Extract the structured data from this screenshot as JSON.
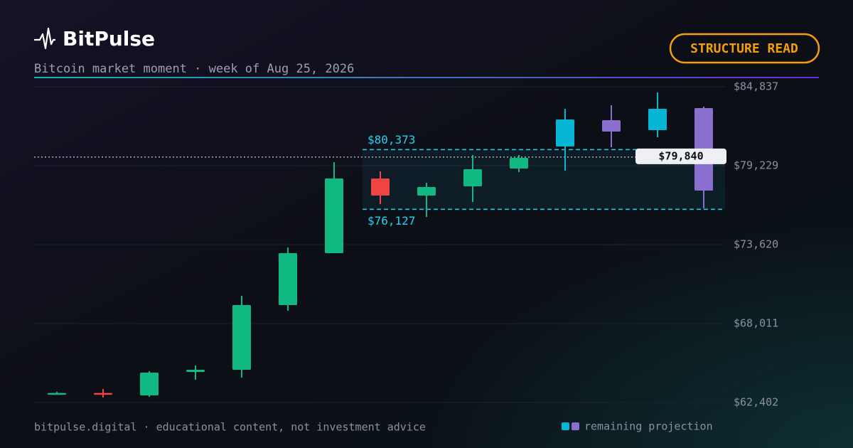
{
  "header": {
    "brand": "BitPulse",
    "subtitle": "Bitcoin market moment · week of Aug 25, 2026",
    "badge": "STRUCTURE READ"
  },
  "footer": {
    "text": "bitpulse.digital · educational content, not investment advice"
  },
  "chart_data": {
    "type": "candlestick",
    "open": [
      63040,
      63080,
      62907,
      64575,
      64726,
      69325,
      73013,
      78319,
      77106,
      77763,
      79026,
      80593,
      81654,
      81755,
      83321
    ],
    "high": [
      63160,
      63362,
      64625,
      65030,
      69982,
      73418,
      79481,
      78824,
      78016,
      79986,
      79986,
      83271,
      83524,
      84433,
      83422
    ],
    "low": [
      62960,
      62756,
      62806,
      64019,
      64171,
      68920,
      73013,
      76500,
      75590,
      76651,
      78773,
      78875,
      80542,
      81250,
      76197
    ],
    "close": [
      63080,
      63000,
      64524,
      64726,
      69325,
      73013,
      78319,
      77106,
      77713,
      78976,
      79784,
      82513,
      82462,
      83271,
      77460
    ],
    "colors": [
      "#10b981",
      "#ef4444",
      "#10b981",
      "#10b981",
      "#10b981",
      "#10b981",
      "#10b981",
      "#ef4444",
      "#10b981",
      "#10b981",
      "#10b981",
      "#06b6d4",
      "#8b6fd0",
      "#06b6d4",
      "#8b6fd0"
    ],
    "ylim": [
      62402,
      84837
    ],
    "yticks": [
      {
        "value": 84837,
        "label": "$84,837"
      },
      {
        "value": 79229,
        "label": "$79,229"
      },
      {
        "value": 73620,
        "label": "$73,620"
      },
      {
        "value": 68011,
        "label": "$68,011"
      },
      {
        "value": 62402,
        "label": "$62,402"
      }
    ],
    "grid": true,
    "range": {
      "values": [
        80373,
        76127
      ],
      "value_labels": [
        "$80,373",
        "$76,127"
      ],
      "color": "#22d3ee"
    },
    "current_price": {
      "value": 79840,
      "value_label": "$79,840"
    },
    "legend": {
      "label": "remaining projection",
      "colors": [
        "#06b6d4",
        "#8b6fd0"
      ]
    }
  }
}
